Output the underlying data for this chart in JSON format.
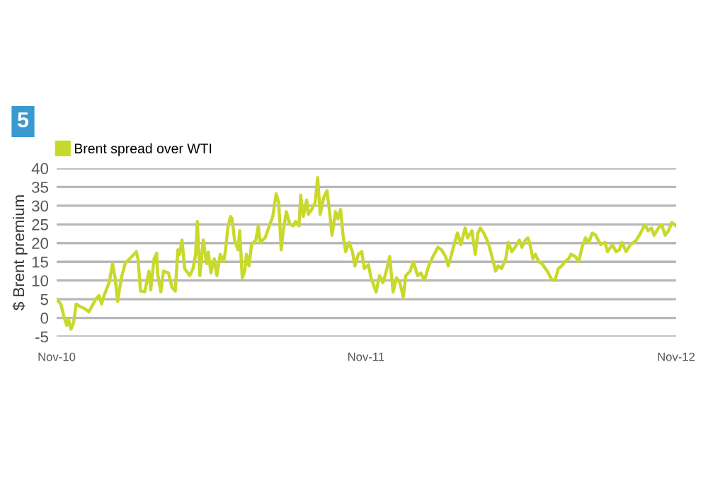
{
  "chart_data": {
    "type": "line",
    "ylabel": "$ Brent premium",
    "annotations": [
      "5"
    ],
    "legend": "top left",
    "grid": "y",
    "marker": "none",
    "line_style": "solid",
    "xlim": [
      "2010-11-01",
      "2012-11-01"
    ],
    "xticks": [
      {
        "value": "2010-11-01",
        "label": "Nov-10"
      },
      {
        "value": "2011-11-01",
        "label": "Nov-11"
      },
      {
        "value": "2012-11-01",
        "label": "Nov-12"
      }
    ],
    "ylim": [
      -5,
      40
    ],
    "yticks": [
      -5,
      0,
      5,
      10,
      15,
      20,
      25,
      30,
      35,
      40
    ],
    "series": [
      {
        "name": "Brent spread over WTI",
        "color": "#c8d92c",
        "x": [
          "2010-11-01",
          "2010-11-06",
          "2010-11-10",
          "2010-11-13",
          "2010-11-15",
          "2010-11-18",
          "2010-11-21",
          "2010-11-24",
          "2010-11-29",
          "2010-12-04",
          "2010-12-09",
          "2010-12-14",
          "2010-12-17",
          "2010-12-21",
          "2010-12-24",
          "2010-12-27",
          "2011-01-02",
          "2011-01-06",
          "2011-01-09",
          "2011-01-12",
          "2011-01-14",
          "2011-01-17",
          "2011-01-21",
          "2011-01-26",
          "2011-01-30",
          "2011-02-03",
          "2011-02-05",
          "2011-02-08",
          "2011-02-13",
          "2011-02-18",
          "2011-02-20",
          "2011-02-24",
          "2011-02-27",
          "2011-02-28",
          "2011-03-04",
          "2011-03-07",
          "2011-03-13",
          "2011-03-17",
          "2011-03-21",
          "2011-03-24",
          "2011-03-26",
          "2011-03-29",
          "2011-04-01",
          "2011-04-07",
          "2011-04-11",
          "2011-04-14",
          "2011-04-16",
          "2011-04-19",
          "2011-04-23",
          "2011-04-27",
          "2011-04-29",
          "2011-05-02",
          "2011-05-06",
          "2011-05-09",
          "2011-05-13",
          "2011-05-17",
          "2011-05-19",
          "2011-05-22",
          "2011-05-25",
          "2011-05-27",
          "2011-05-30",
          "2011-06-03",
          "2011-06-05",
          "2011-06-08",
          "2011-06-11",
          "2011-06-13",
          "2011-06-16",
          "2011-06-19",
          "2011-06-24",
          "2011-06-27",
          "2011-06-29",
          "2011-07-05",
          "2011-07-10",
          "2011-07-14",
          "2011-07-18",
          "2011-07-21",
          "2011-07-24",
          "2011-07-26",
          "2011-07-30",
          "2011-08-03",
          "2011-08-07",
          "2011-08-10",
          "2011-08-14",
          "2011-08-16",
          "2011-08-19",
          "2011-08-23",
          "2011-08-25",
          "2011-08-29",
          "2011-09-02",
          "2011-09-05",
          "2011-09-08",
          "2011-09-12",
          "2011-09-16",
          "2011-09-19",
          "2011-09-22",
          "2011-09-26",
          "2011-09-29",
          "2011-10-02",
          "2011-10-05",
          "2011-10-08",
          "2011-10-12",
          "2011-10-16",
          "2011-10-19",
          "2011-10-23",
          "2011-10-27",
          "2011-10-30",
          "2011-11-04",
          "2011-11-07",
          "2011-11-13",
          "2011-11-17",
          "2011-11-21",
          "2011-11-25",
          "2011-11-29",
          "2011-12-03",
          "2011-12-07",
          "2011-12-11",
          "2011-12-15",
          "2011-12-18",
          "2011-12-23",
          "2011-12-27",
          "2012-01-01",
          "2012-01-05",
          "2012-01-09",
          "2012-01-14",
          "2012-01-19",
          "2012-01-25",
          "2012-01-29",
          "2012-02-03",
          "2012-02-06",
          "2012-02-10",
          "2012-02-13",
          "2012-02-17",
          "2012-02-21",
          "2012-02-26",
          "2012-02-29",
          "2012-03-05",
          "2012-03-09",
          "2012-03-12",
          "2012-03-15",
          "2012-03-19",
          "2012-03-24",
          "2012-03-28",
          "2012-04-02",
          "2012-04-05",
          "2012-04-09",
          "2012-04-14",
          "2012-04-17",
          "2012-04-21",
          "2012-04-25",
          "2012-04-30",
          "2012-05-03",
          "2012-05-07",
          "2012-05-10",
          "2012-05-12",
          "2012-05-16",
          "2012-05-19",
          "2012-05-23",
          "2012-05-27",
          "2012-06-02",
          "2012-06-07",
          "2012-06-11",
          "2012-06-15",
          "2012-06-19",
          "2012-06-23",
          "2012-06-27",
          "2012-06-30",
          "2012-07-05",
          "2012-07-09",
          "2012-07-13",
          "2012-07-17",
          "2012-07-21",
          "2012-07-25",
          "2012-07-29",
          "2012-08-04",
          "2012-08-09",
          "2012-08-12",
          "2012-08-18",
          "2012-08-22",
          "2012-08-26",
          "2012-08-29",
          "2012-09-03",
          "2012-09-08",
          "2012-09-12",
          "2012-09-15",
          "2012-09-20",
          "2012-09-25",
          "2012-09-29",
          "2012-10-03",
          "2012-10-06",
          "2012-10-11",
          "2012-10-15",
          "2012-10-19",
          "2012-10-23",
          "2012-10-27",
          "2012-11-01"
        ],
        "values": [
          5,
          3.7,
          0,
          -2,
          -0.5,
          -3,
          -1.3,
          3.7,
          3,
          2.5,
          1.6,
          3.7,
          5,
          6,
          3.7,
          6,
          9.5,
          14.5,
          10.7,
          4.4,
          7.5,
          11.3,
          14.6,
          15.8,
          16.7,
          17.7,
          15.8,
          7.2,
          7,
          12.5,
          7.5,
          15.8,
          17.3,
          12,
          7,
          12.5,
          12,
          8.2,
          7.2,
          18.2,
          17,
          20.8,
          13.2,
          11.3,
          13.2,
          17,
          25.8,
          11.3,
          20.8,
          14.5,
          17.6,
          12,
          15.8,
          11.3,
          17,
          15.1,
          17.6,
          24,
          27.1,
          26.5,
          20.8,
          18.2,
          23.3,
          10.7,
          12.5,
          17,
          13.9,
          19.6,
          20.8,
          24.6,
          20.2,
          21.4,
          24.6,
          27.1,
          33.2,
          30.9,
          18.2,
          22.7,
          28.4,
          25.2,
          24.6,
          25.8,
          24.6,
          32.8,
          27.1,
          31.5,
          27.7,
          29,
          30.9,
          37.5,
          27.7,
          32.1,
          34,
          28.4,
          22.1,
          28.4,
          26.5,
          29,
          22.1,
          17.7,
          20.2,
          17.7,
          13.9,
          17,
          17.7,
          13.2,
          14.2,
          10.7,
          6.9,
          11.3,
          9.4,
          12.5,
          16.4,
          6.9,
          10.7,
          9.4,
          5.6,
          11.3,
          12.5,
          15,
          11.3,
          12,
          10,
          13.9,
          16.4,
          18.9,
          18.2,
          16.4,
          13.9,
          17,
          19.6,
          22.7,
          19.6,
          24,
          21.4,
          23.3,
          17,
          22.7,
          24,
          22.7,
          20.2,
          17,
          12.5,
          13.9,
          13.2,
          15.8,
          20.2,
          17.7,
          18.9,
          20.8,
          18.9,
          20.8,
          21.4,
          20.2,
          15.8,
          17,
          15,
          14.4,
          12.5,
          10.3,
          10,
          13.2,
          13.9,
          15.1,
          15.8,
          17,
          16.4,
          15.1,
          18.9,
          21.4,
          20.2,
          22.7,
          22.1,
          19.6,
          20.2,
          17.7,
          19.6,
          17.7,
          18.2,
          20.2,
          17.7,
          19.6,
          20.2,
          20.8,
          22.7,
          24.9,
          23.3,
          24,
          22.1,
          24,
          24.9,
          22.1,
          23.3,
          25.5,
          24.6
        ]
      }
    ]
  }
}
